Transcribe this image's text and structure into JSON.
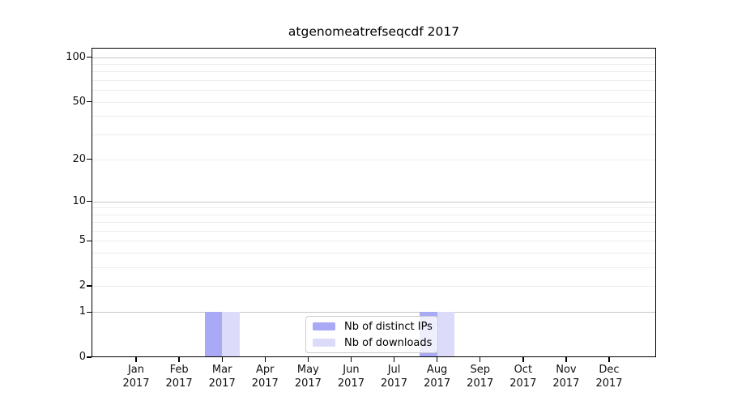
{
  "chart_data": {
    "type": "bar",
    "title": "atgenomeatrefseqcdf 2017",
    "xlabel": "",
    "ylabel": "",
    "x_year": "2017",
    "categories": [
      "Jan",
      "Feb",
      "Mar",
      "Apr",
      "May",
      "Jun",
      "Jul",
      "Aug",
      "Sep",
      "Oct",
      "Nov",
      "Dec"
    ],
    "series": [
      {
        "name": "Nb of distinct IPs",
        "color": "#a9a9f5",
        "values": [
          0,
          0,
          1,
          0,
          0,
          0,
          0,
          1,
          0,
          0,
          0,
          0
        ]
      },
      {
        "name": "Nb of downloads",
        "color": "#dcdcfa",
        "values": [
          0,
          0,
          1,
          0,
          0,
          0,
          0,
          1,
          0,
          0,
          0,
          0
        ]
      }
    ],
    "y_scale": "log1p",
    "ylim": [
      0,
      116
    ],
    "y_ticks": [
      100,
      50,
      20,
      10,
      5,
      2,
      1,
      0
    ],
    "y_major_gridlines": [
      1,
      10,
      100
    ],
    "y_minor_gridlines": [
      2,
      3,
      4,
      5,
      6,
      7,
      8,
      9,
      20,
      30,
      40,
      50,
      60,
      70,
      80,
      90
    ],
    "grid": "on",
    "legend_position": "lower-center",
    "colors": {
      "major_grid": "#c6c6c6",
      "minor_grid": "#ededed",
      "spine": "#000000",
      "legend_border": "#cccccc"
    }
  }
}
